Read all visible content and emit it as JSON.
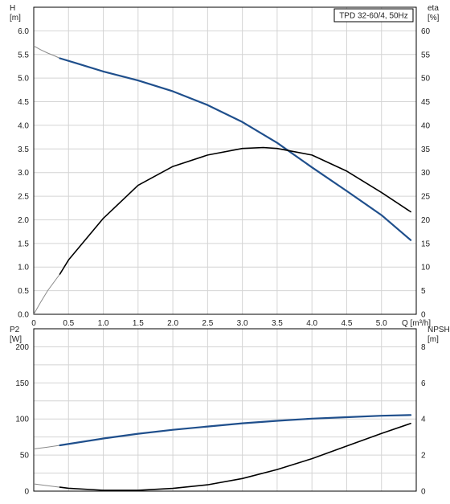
{
  "chart_data": [
    {
      "type": "line",
      "title": "TPD 32-60/4, 50Hz",
      "xlabel": "Q [m³/h]",
      "ylabel_left_name": "H",
      "ylabel_left_unit": "[m]",
      "ylabel_right_name": "eta",
      "ylabel_right_unit": "[%]",
      "xlim": [
        0,
        5.5
      ],
      "ylim_left": [
        0,
        6.5
      ],
      "ylim_right": [
        0,
        65
      ],
      "x_ticks": [
        "0",
        "0.5",
        "1.0",
        "1.5",
        "2.0",
        "2.5",
        "3.0",
        "3.5",
        "4.0",
        "4.5",
        "5.0"
      ],
      "y_ticks_left": [
        "0.0",
        "0.5",
        "1.0",
        "1.5",
        "2.0",
        "2.5",
        "3.0",
        "3.5",
        "4.0",
        "4.5",
        "5.0",
        "5.5",
        "6.0"
      ],
      "y_ticks_right": [
        "0",
        "5",
        "10",
        "15",
        "20",
        "25",
        "30",
        "35",
        "40",
        "45",
        "50",
        "55",
        "60"
      ],
      "grid": true,
      "legend_position": "top-right",
      "series": [
        {
          "name": "H",
          "axis": "left",
          "color": "#1f4f8c",
          "extrapolated": {
            "x": [
              0,
              0.1,
              0.2,
              0.3,
              0.375
            ],
            "y": [
              5.68,
              5.6,
              5.53,
              5.47,
              5.42
            ]
          },
          "x": [
            0.375,
            0.6,
            1.0,
            1.5,
            2.0,
            2.5,
            3.0,
            3.5,
            4.0,
            4.5,
            5.0,
            5.42
          ],
          "y": [
            5.42,
            5.32,
            5.14,
            4.95,
            4.72,
            4.43,
            4.07,
            3.63,
            3.11,
            2.61,
            2.1,
            1.57
          ]
        },
        {
          "name": "eta",
          "axis": "right",
          "color": "#000000",
          "extrapolated": {
            "x": [
              0,
              0.1,
              0.2,
              0.375
            ],
            "y": [
              0,
              2.6,
              5.0,
              8.5
            ]
          },
          "x": [
            0.375,
            0.5,
            1.0,
            1.5,
            2.0,
            2.5,
            3.0,
            3.3,
            3.5,
            4.0,
            4.5,
            5.0,
            5.42
          ],
          "y": [
            8.5,
            11.5,
            20.3,
            27.3,
            31.3,
            33.7,
            35.1,
            35.3,
            35.1,
            33.7,
            30.3,
            25.8,
            21.7
          ]
        }
      ]
    },
    {
      "type": "line",
      "xlim": [
        0,
        5.5
      ],
      "ylabel_left_name": "P2",
      "ylabel_left_unit": "[W]",
      "ylabel_right_name": "NPSH",
      "ylabel_right_unit": "[m]",
      "ylim_left": [
        0,
        225
      ],
      "ylim_right": [
        0,
        9
      ],
      "y_ticks_left": [
        "0",
        "50",
        "100",
        "150",
        "200"
      ],
      "y_ticks_right": [
        "0",
        "2",
        "4",
        "6",
        "8"
      ],
      "grid": true,
      "series": [
        {
          "name": "P2",
          "axis": "left",
          "color": "#1f4f8c",
          "extrapolated": {
            "x": [
              0,
              0.2,
              0.375
            ],
            "y": [
              58.5,
              61,
              63.5
            ]
          },
          "x": [
            0.375,
            1.0,
            1.5,
            2.0,
            2.5,
            3.0,
            3.5,
            4.0,
            4.5,
            5.0,
            5.42
          ],
          "y": [
            63.5,
            73,
            79.5,
            85,
            89.5,
            94,
            97.5,
            100.5,
            102.5,
            104.5,
            105.5
          ]
        },
        {
          "name": "NPSH",
          "axis": "right",
          "color": "#000000",
          "extrapolated": {
            "x": [
              0,
              0.2,
              0.375
            ],
            "y": [
              0.4,
              0.3,
              0.22
            ]
          },
          "x": [
            0.375,
            0.5,
            1.0,
            1.5,
            2.0,
            2.5,
            3.0,
            3.5,
            4.0,
            4.5,
            5.0,
            5.42
          ],
          "y": [
            0.22,
            0.16,
            0.05,
            0.05,
            0.15,
            0.35,
            0.7,
            1.2,
            1.8,
            2.5,
            3.2,
            3.75
          ]
        }
      ]
    }
  ]
}
